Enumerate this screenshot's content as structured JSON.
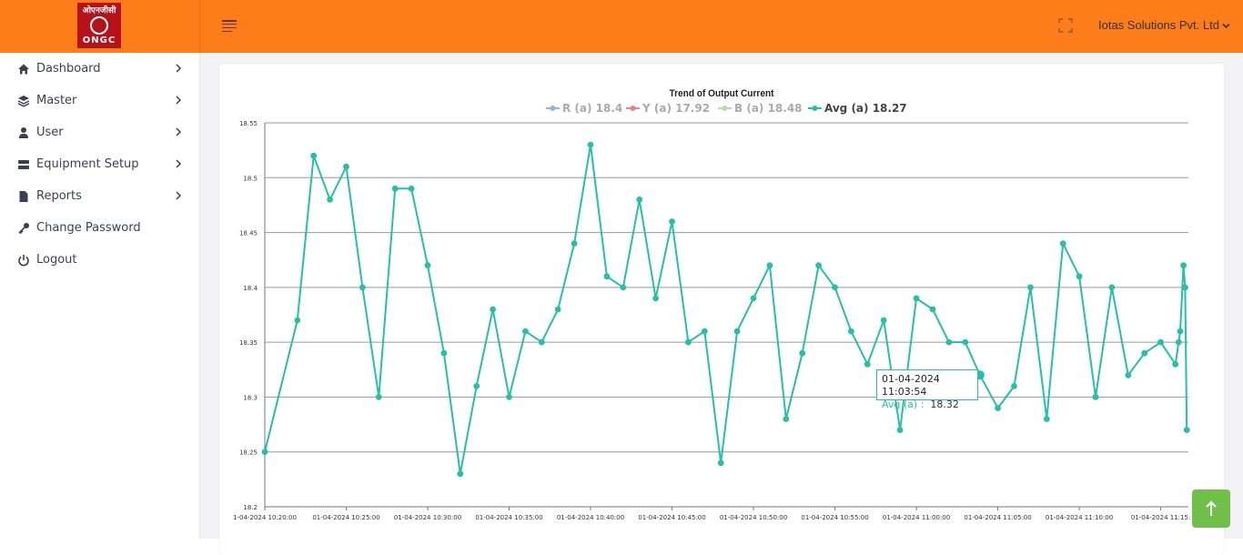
{
  "header": {
    "logo_hindi": "ओएनजीसी",
    "logo_text": "ONGC",
    "company": "Iotas Solutions Pvt. Ltd",
    "brand_color": "#fe7d1b"
  },
  "sidebar": {
    "items": [
      {
        "label": "Dashboard",
        "icon": "home-icon"
      },
      {
        "label": "Master",
        "icon": "layers-icon"
      },
      {
        "label": "User",
        "icon": "user-icon"
      },
      {
        "label": "Equipment Setup",
        "icon": "server-icon"
      },
      {
        "label": "Reports",
        "icon": "file-icon"
      },
      {
        "label": "Change Password",
        "icon": "key-icon"
      },
      {
        "label": "Logout",
        "icon": "power-icon"
      }
    ]
  },
  "tooltip": {
    "date": "01-04-2024 11:03:54",
    "series": "Avg (a) :",
    "value": "18.32"
  },
  "chart_data": {
    "type": "line",
    "title": "Trend of Output Current",
    "ylim": [
      18.2,
      18.55
    ],
    "y_ticks": [
      "18.55",
      "18.5",
      "18.45",
      "18.4",
      "18.35",
      "18.3",
      "18.25",
      "18.2"
    ],
    "x_tick_labels": [
      "1-04-2024 10:20:00",
      "01-04-2024 10:25:00",
      "01-04-2024 10:30:00",
      "01-04-2024 10:35:00",
      "01-04-2024 10:40:00",
      "01-04-2024 10:45:00",
      "01-04-2024 10:50:00",
      "01-04-2024 10:55:00",
      "01-04-2024 11:00:00",
      "01-04-2024 11:05:00",
      "01-04-2024 11:10:00",
      "01-04-2024 11:15:"
    ],
    "x_range_minutes": [
      0,
      56.7
    ],
    "grid": true,
    "legend": [
      {
        "label": "R (a) 18.4",
        "color": "#8fb3e6",
        "active": false
      },
      {
        "label": "Y (a) 17.92",
        "color": "#e88484",
        "active": false
      },
      {
        "label": "B (a) 18.48",
        "color": "#b5dca0",
        "active": false
      },
      {
        "label": "Avg (a) 18.27",
        "color": "#26bfa8",
        "active": true
      }
    ],
    "series": [
      {
        "name": "Avg (a)",
        "color": "#26bfa8",
        "points": [
          [
            0.0,
            18.25
          ],
          [
            2.0,
            18.37
          ],
          [
            3.0,
            18.52
          ],
          [
            4.0,
            18.48
          ],
          [
            5.0,
            18.51
          ],
          [
            6.0,
            18.4
          ],
          [
            7.0,
            18.3
          ],
          [
            8.0,
            18.49
          ],
          [
            9.0,
            18.49
          ],
          [
            10.0,
            18.42
          ],
          [
            11.0,
            18.34
          ],
          [
            12.0,
            18.23
          ],
          [
            13.0,
            18.31
          ],
          [
            14.0,
            18.38
          ],
          [
            15.0,
            18.3
          ],
          [
            16.0,
            18.36
          ],
          [
            17.0,
            18.35
          ],
          [
            18.0,
            18.38
          ],
          [
            19.0,
            18.44
          ],
          [
            20.0,
            18.53
          ],
          [
            21.0,
            18.41
          ],
          [
            22.0,
            18.4
          ],
          [
            23.0,
            18.48
          ],
          [
            24.0,
            18.39
          ],
          [
            25.0,
            18.46
          ],
          [
            26.0,
            18.35
          ],
          [
            27.0,
            18.36
          ],
          [
            28.0,
            18.24
          ],
          [
            29.0,
            18.36
          ],
          [
            30.0,
            18.39
          ],
          [
            31.0,
            18.42
          ],
          [
            32.0,
            18.28
          ],
          [
            33.0,
            18.34
          ],
          [
            34.0,
            18.42
          ],
          [
            35.0,
            18.4
          ],
          [
            36.0,
            18.36
          ],
          [
            37.0,
            18.33
          ],
          [
            38.0,
            18.37
          ],
          [
            39.0,
            18.27
          ],
          [
            40.0,
            18.39
          ],
          [
            41.0,
            18.38
          ],
          [
            42.0,
            18.35
          ],
          [
            43.0,
            18.35
          ],
          [
            43.9,
            18.32
          ],
          [
            45.0,
            18.29
          ],
          [
            46.0,
            18.31
          ],
          [
            47.0,
            18.4
          ],
          [
            48.0,
            18.28
          ],
          [
            49.0,
            18.44
          ],
          [
            50.0,
            18.41
          ],
          [
            51.0,
            18.3
          ],
          [
            52.0,
            18.4
          ],
          [
            53.0,
            18.32
          ],
          [
            54.0,
            18.34
          ],
          [
            55.0,
            18.35
          ],
          [
            55.9,
            18.33
          ],
          [
            56.1,
            18.35
          ],
          [
            56.2,
            18.36
          ],
          [
            56.4,
            18.42
          ],
          [
            56.5,
            18.4
          ],
          [
            56.6,
            18.27
          ]
        ]
      }
    ]
  }
}
